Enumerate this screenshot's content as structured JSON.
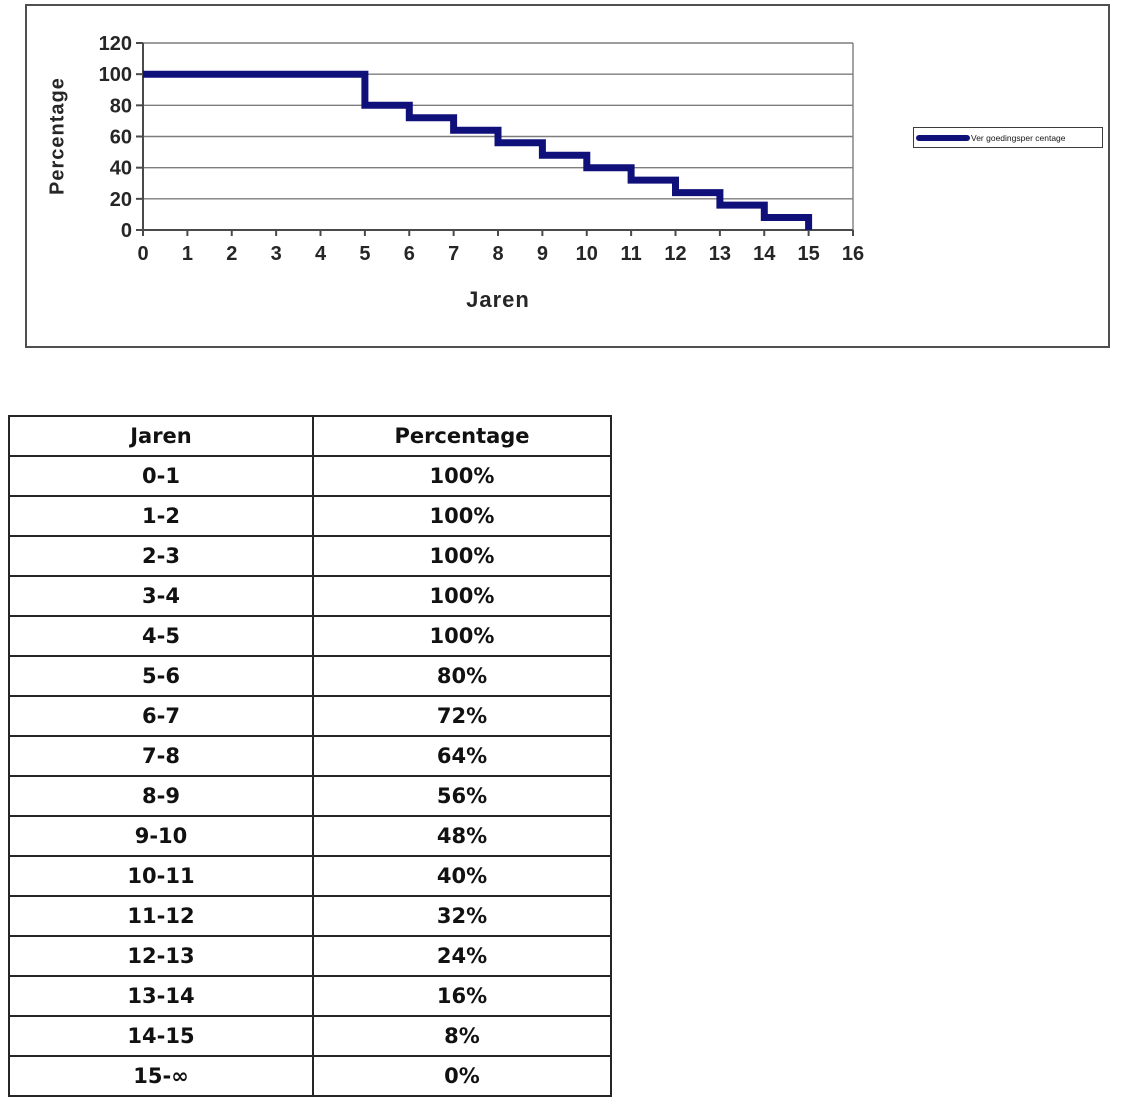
{
  "chart_data": {
    "type": "line",
    "step": true,
    "title": "",
    "xlabel": "Jaren",
    "ylabel": "Percentage",
    "xlim": [
      0,
      16
    ],
    "ylim": [
      0,
      120
    ],
    "xticks": [
      0,
      1,
      2,
      3,
      4,
      5,
      6,
      7,
      8,
      9,
      10,
      11,
      12,
      13,
      14,
      15,
      16
    ],
    "yticks": [
      0,
      20,
      40,
      60,
      80,
      100,
      120
    ],
    "grid": "horizontal",
    "legend_position": "right",
    "colors": {
      "grid": "#7d7d7d",
      "axis": "#4a4a4a",
      "text": "#262626"
    },
    "series": [
      {
        "name": "Ver goedingsper centage",
        "color": "#10107b",
        "points": [
          [
            0,
            100
          ],
          [
            5,
            100
          ],
          [
            5,
            80
          ],
          [
            6,
            80
          ],
          [
            6,
            72
          ],
          [
            7,
            72
          ],
          [
            7,
            64
          ],
          [
            8,
            64
          ],
          [
            8,
            56
          ],
          [
            9,
            56
          ],
          [
            9,
            48
          ],
          [
            10,
            48
          ],
          [
            10,
            40
          ],
          [
            11,
            40
          ],
          [
            11,
            32
          ],
          [
            12,
            32
          ],
          [
            12,
            24
          ],
          [
            13,
            24
          ],
          [
            13,
            16
          ],
          [
            14,
            16
          ],
          [
            14,
            8
          ],
          [
            15,
            8
          ],
          [
            15,
            0
          ]
        ]
      }
    ]
  },
  "table": {
    "headers": [
      "Jaren",
      "Percentage"
    ],
    "rows": [
      [
        "0-1",
        "100%"
      ],
      [
        "1-2",
        "100%"
      ],
      [
        "2-3",
        "100%"
      ],
      [
        "3-4",
        "100%"
      ],
      [
        "4-5",
        "100%"
      ],
      [
        "5-6",
        "80%"
      ],
      [
        "6-7",
        "72%"
      ],
      [
        "7-8",
        "64%"
      ],
      [
        "8-9",
        "56%"
      ],
      [
        "9-10",
        "48%"
      ],
      [
        "10-11",
        "40%"
      ],
      [
        "11-12",
        "32%"
      ],
      [
        "12-13",
        "24%"
      ],
      [
        "13-14",
        "16%"
      ],
      [
        "14-15",
        "8%"
      ],
      [
        "15-∞",
        "0%"
      ]
    ]
  }
}
